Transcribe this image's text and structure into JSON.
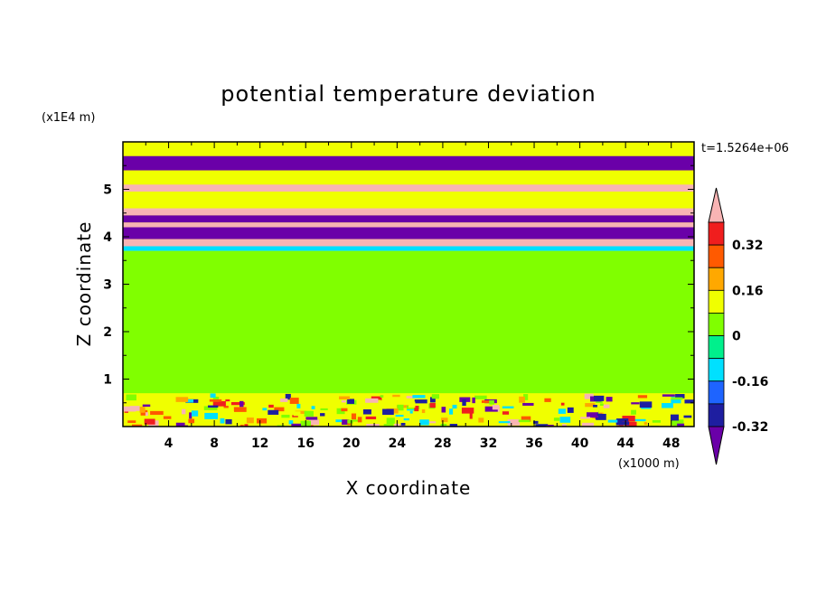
{
  "chart_data": {
    "type": "heatmap",
    "title": "potential temperature deviation",
    "xlabel": "X coordinate",
    "ylabel": "Z coordinate",
    "x_unit": "(x1000 m)",
    "y_unit": "(x1E4 m)",
    "time_label": "t=1.5264e+06",
    "x_ticks": [
      4,
      8,
      12,
      16,
      20,
      24,
      28,
      32,
      36,
      40,
      44,
      48
    ],
    "y_ticks": [
      1,
      2,
      3,
      4,
      5
    ],
    "xlim": [
      0,
      50
    ],
    "ylim": [
      0,
      6
    ],
    "grid": false,
    "colorbar": {
      "placement": "right",
      "levels": [
        -0.4,
        -0.32,
        -0.24,
        -0.16,
        -0.08,
        0,
        0.08,
        0.16,
        0.24,
        0.32,
        0.4
      ],
      "labels": [
        "0.32",
        "0.16",
        "0",
        "-0.16",
        "-0.32"
      ],
      "label_values": [
        0.32,
        0.16,
        0,
        -0.16,
        -0.32
      ],
      "colors_low_to_high": [
        "#6a00a8",
        "#1e1ea0",
        "#1e64ff",
        "#00e0ff",
        "#00f08c",
        "#80ff00",
        "#f0ff00",
        "#ffa800",
        "#ff5a00",
        "#f01e1e",
        "#f8b4b4"
      ],
      "extend": "both"
    },
    "bands": [
      {
        "z": [
          5.4,
          5.7
        ],
        "value": -0.4
      },
      {
        "z": [
          5.1,
          5.4
        ],
        "value": 0.08
      },
      {
        "z": [
          4.95,
          5.1
        ],
        "value": 0.4
      },
      {
        "z": [
          4.6,
          4.95
        ],
        "value": 0.08
      },
      {
        "z": [
          4.45,
          4.6
        ],
        "value": 0.4
      },
      {
        "z": [
          4.3,
          4.45
        ],
        "value": -0.4
      },
      {
        "z": [
          4.2,
          4.3
        ],
        "value": 0.4
      },
      {
        "z": [
          3.95,
          4.2
        ],
        "value": -0.4
      },
      {
        "z": [
          3.8,
          3.95
        ],
        "value": 0.4
      },
      {
        "z": [
          3.7,
          3.8
        ],
        "value": -0.16
      },
      {
        "z": [
          0.7,
          3.7
        ],
        "value": 0
      },
      {
        "z": [
          0.0,
          0.7
        ],
        "value": 0.08
      }
    ]
  }
}
